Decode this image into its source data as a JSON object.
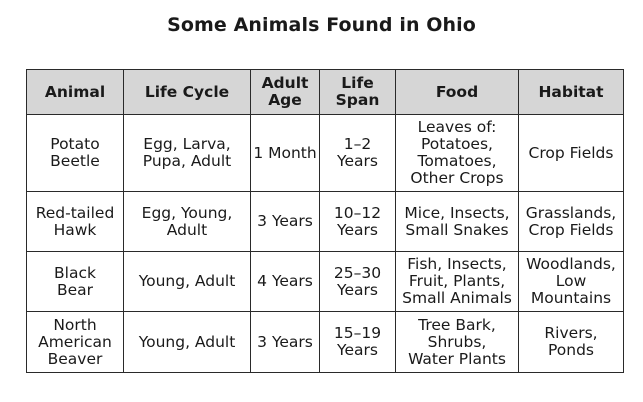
{
  "title": "Some Animals Found in Ohio",
  "headers": [
    [
      "Animal"
    ],
    [
      "Life Cycle"
    ],
    [
      "Adult",
      "Age"
    ],
    [
      "Life",
      "Span"
    ],
    [
      "Food"
    ],
    [
      "Habitat"
    ]
  ],
  "rows": [
    {
      "animal": [
        "Potato",
        "Beetle"
      ],
      "life_cycle": [
        "Egg, Larva,",
        "Pupa, Adult"
      ],
      "adult_age": [
        "1 Month"
      ],
      "life_span": [
        "1–2",
        "Years"
      ],
      "food": [
        "Leaves of:",
        "Potatoes,",
        "Tomatoes,",
        "Other Crops"
      ],
      "habitat": [
        "Crop Fields"
      ]
    },
    {
      "animal": [
        "Red-tailed",
        "Hawk"
      ],
      "life_cycle": [
        "Egg, Young,",
        "Adult"
      ],
      "adult_age": [
        "3 Years"
      ],
      "life_span": [
        "10–12",
        "Years"
      ],
      "food": [
        "Mice, Insects,",
        "Small Snakes"
      ],
      "habitat": [
        "Grasslands,",
        "Crop Fields"
      ]
    },
    {
      "animal": [
        "Black",
        "Bear"
      ],
      "life_cycle": [
        "Young, Adult"
      ],
      "adult_age": [
        "4 Years"
      ],
      "life_span": [
        "25–30",
        "Years"
      ],
      "food": [
        "Fish, Insects,",
        "Fruit, Plants,",
        "Small Animals"
      ],
      "habitat": [
        "Woodlands,",
        "Low",
        "Mountains"
      ]
    },
    {
      "animal": [
        "North",
        "American",
        "Beaver"
      ],
      "life_cycle": [
        "Young, Adult"
      ],
      "adult_age": [
        "3 Years"
      ],
      "life_span": [
        "15–19",
        "Years"
      ],
      "food": [
        "Tree Bark,",
        "Shrubs,",
        "Water Plants"
      ],
      "habitat": [
        "Rivers,",
        "Ponds"
      ]
    }
  ]
}
